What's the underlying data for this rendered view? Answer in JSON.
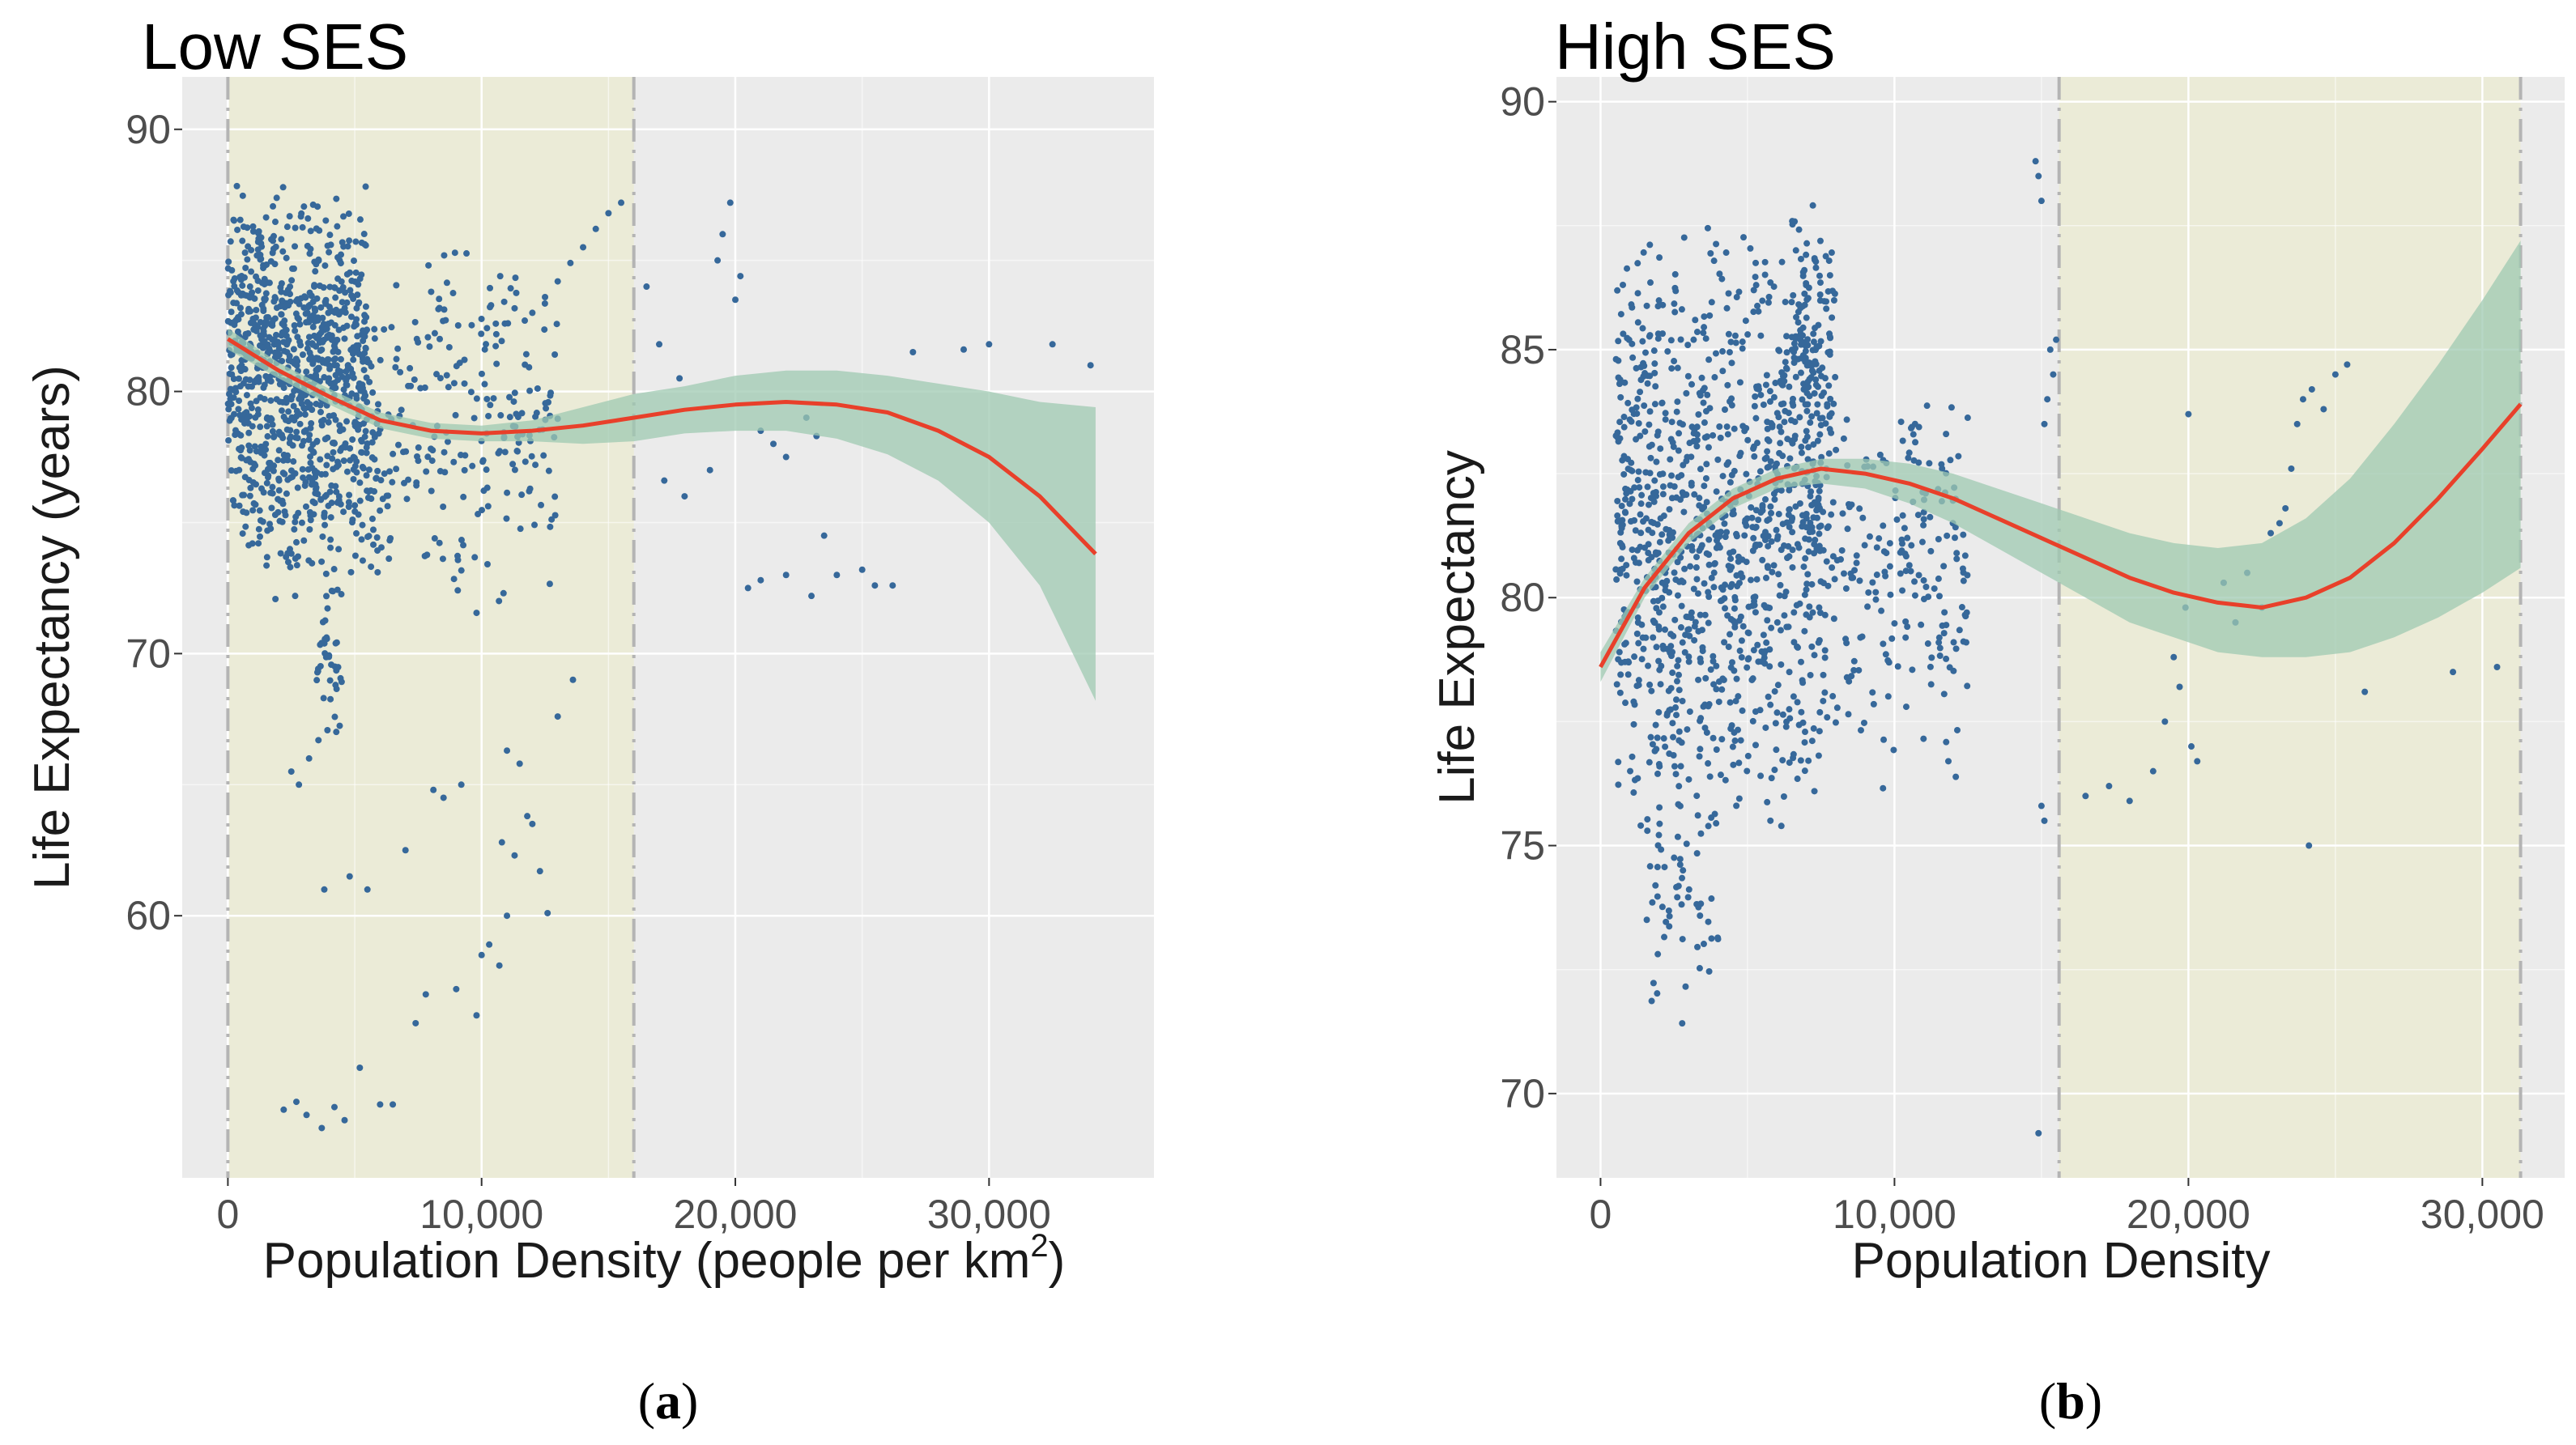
{
  "colors": {
    "panel_bg": "#EBEBEB",
    "grid": "#FFFFFF",
    "highlight": "#EBEBD7",
    "boundary_line": "#B4B4B4",
    "point": "#36689A",
    "ci_band": "#9FC9B2",
    "fit_line": "#E8402A"
  },
  "chart_data": [
    {
      "type": "scatter",
      "title": "Low SES",
      "xlabel": "Population Density (people per km",
      "xlabel_sup": "2",
      "xlabel_close": ")",
      "ylabel": "Life Expectancy (years)",
      "caption_open": "(",
      "caption_letter": "a",
      "caption_close": ")",
      "xlim": [
        -1800,
        36500
      ],
      "ylim": [
        50,
        92
      ],
      "xticks": [
        0,
        10000,
        20000,
        30000
      ],
      "xtick_labels": [
        "0",
        "10,000",
        "20,000",
        "30,000"
      ],
      "yticks": [
        60,
        70,
        80,
        90
      ],
      "ytick_labels": [
        "60",
        "70",
        "80",
        "90"
      ],
      "shaded_region": [
        0,
        16000
      ],
      "boundary_lines": [
        0,
        16000
      ],
      "fit": [
        {
          "x": 0,
          "y": 82.0,
          "lo": 81.6,
          "hi": 82.4
        },
        {
          "x": 2000,
          "y": 80.8,
          "lo": 80.5,
          "hi": 81.1
        },
        {
          "x": 4000,
          "y": 79.8,
          "lo": 79.5,
          "hi": 80.1
        },
        {
          "x": 6000,
          "y": 78.9,
          "lo": 78.6,
          "hi": 79.2
        },
        {
          "x": 8000,
          "y": 78.5,
          "lo": 78.2,
          "hi": 78.8
        },
        {
          "x": 10000,
          "y": 78.4,
          "lo": 78.1,
          "hi": 78.7
        },
        {
          "x": 12000,
          "y": 78.5,
          "lo": 78.1,
          "hi": 78.9
        },
        {
          "x": 14000,
          "y": 78.7,
          "lo": 78.0,
          "hi": 79.4
        },
        {
          "x": 16000,
          "y": 79.0,
          "lo": 78.1,
          "hi": 79.9
        },
        {
          "x": 18000,
          "y": 79.3,
          "lo": 78.4,
          "hi": 80.2
        },
        {
          "x": 20000,
          "y": 79.5,
          "lo": 78.5,
          "hi": 80.6
        },
        {
          "x": 22000,
          "y": 79.6,
          "lo": 78.5,
          "hi": 80.8
        },
        {
          "x": 24000,
          "y": 79.5,
          "lo": 78.2,
          "hi": 80.8
        },
        {
          "x": 26000,
          "y": 79.2,
          "lo": 77.6,
          "hi": 80.6
        },
        {
          "x": 28000,
          "y": 78.5,
          "lo": 76.6,
          "hi": 80.3
        },
        {
          "x": 30000,
          "y": 77.5,
          "lo": 75.0,
          "hi": 80.0
        },
        {
          "x": 32000,
          "y": 76.0,
          "lo": 72.6,
          "hi": 79.6
        },
        {
          "x": 34200,
          "y": 73.8,
          "lo": 68.2,
          "hi": 79.4
        }
      ],
      "clusters": [
        {
          "x": [
            0,
            5500
          ],
          "y": [
            75,
            88
          ],
          "n": 820
        },
        {
          "x": [
            500,
            6000
          ],
          "y": [
            72,
            80
          ],
          "n": 180
        },
        {
          "x": [
            5000,
            13000
          ],
          "y": [
            71,
            86
          ],
          "n": 260
        },
        {
          "x": [
            3500,
            4500
          ],
          "y": [
            66,
            74
          ],
          "n": 40
        }
      ],
      "points": [
        [
          14000,
          85.5
        ],
        [
          14500,
          86.2
        ],
        [
          15000,
          86.8
        ],
        [
          15500,
          87.2
        ],
        [
          13500,
          84.9
        ],
        [
          13000,
          84.2
        ],
        [
          12500,
          83.6
        ],
        [
          12000,
          83.0
        ],
        [
          16500,
          84.0
        ],
        [
          17000,
          81.8
        ],
        [
          17800,
          80.5
        ],
        [
          17200,
          76.6
        ],
        [
          18000,
          76.0
        ],
        [
          19000,
          77.0
        ],
        [
          19300,
          85.0
        ],
        [
          19500,
          86.0
        ],
        [
          19800,
          87.2
        ],
        [
          20200,
          84.4
        ],
        [
          20000,
          83.5
        ],
        [
          21000,
          78.5
        ],
        [
          21500,
          78.0
        ],
        [
          22000,
          77.5
        ],
        [
          22800,
          79.0
        ],
        [
          23200,
          78.3
        ],
        [
          20500,
          72.5
        ],
        [
          21000,
          72.8
        ],
        [
          22000,
          73.0
        ],
        [
          23000,
          72.2
        ],
        [
          23500,
          74.5
        ],
        [
          24000,
          73.0
        ],
        [
          25000,
          73.2
        ],
        [
          25500,
          72.6
        ],
        [
          26200,
          72.6
        ],
        [
          27000,
          81.5
        ],
        [
          29000,
          81.6
        ],
        [
          30000,
          81.8
        ],
        [
          32500,
          81.8
        ],
        [
          34000,
          81.0
        ],
        [
          2500,
          65.5
        ],
        [
          2800,
          65.0
        ],
        [
          3200,
          66.0
        ],
        [
          3800,
          61.0
        ],
        [
          4800,
          61.5
        ],
        [
          7000,
          62.5
        ],
        [
          5500,
          61.0
        ],
        [
          6500,
          52.8
        ],
        [
          2200,
          52.6
        ],
        [
          2700,
          52.9
        ],
        [
          3100,
          52.4
        ],
        [
          3700,
          51.9
        ],
        [
          4200,
          52.7
        ],
        [
          4600,
          52.2
        ],
        [
          5200,
          54.2
        ],
        [
          6000,
          52.8
        ],
        [
          7400,
          55.9
        ],
        [
          7800,
          57.0
        ],
        [
          8500,
          64.5
        ],
        [
          9000,
          57.2
        ],
        [
          9200,
          65.0
        ],
        [
          9800,
          56.2
        ],
        [
          10000,
          58.5
        ],
        [
          10300,
          58.9
        ],
        [
          10700,
          58.1
        ],
        [
          11000,
          60.0
        ],
        [
          11300,
          62.3
        ],
        [
          11800,
          63.8
        ],
        [
          12300,
          61.7
        ],
        [
          12600,
          60.1
        ],
        [
          13000,
          67.6
        ],
        [
          13600,
          69.0
        ],
        [
          8100,
          64.8
        ],
        [
          11500,
          65.8
        ],
        [
          11000,
          66.3
        ],
        [
          10800,
          62.8
        ],
        [
          12000,
          63.5
        ]
      ]
    },
    {
      "type": "scatter",
      "title": "High SES",
      "xlabel": "Population Density",
      "ylabel": "Life Expectancy",
      "caption_open": "(",
      "caption_letter": "b",
      "caption_close": ")",
      "xlim": [
        -1500,
        32800
      ],
      "ylim": [
        68.3,
        90.5
      ],
      "xticks": [
        0,
        10000,
        20000,
        30000
      ],
      "xtick_labels": [
        "0",
        "10,000",
        "20,000",
        "30,000"
      ],
      "yticks": [
        70,
        75,
        80,
        85,
        90
      ],
      "ytick_labels": [
        "70",
        "75",
        "80",
        "85",
        "90"
      ],
      "shaded_region": [
        15600,
        31300
      ],
      "boundary_lines": [
        15600,
        31300
      ],
      "fit": [
        {
          "x": 0,
          "y": 78.6,
          "lo": 78.3,
          "hi": 78.9
        },
        {
          "x": 1500,
          "y": 80.2,
          "lo": 80.0,
          "hi": 80.4
        },
        {
          "x": 3000,
          "y": 81.3,
          "lo": 81.1,
          "hi": 81.5
        },
        {
          "x": 4500,
          "y": 82.0,
          "lo": 81.8,
          "hi": 82.2
        },
        {
          "x": 6000,
          "y": 82.4,
          "lo": 82.2,
          "hi": 82.6
        },
        {
          "x": 7500,
          "y": 82.6,
          "lo": 82.3,
          "hi": 82.8
        },
        {
          "x": 9000,
          "y": 82.5,
          "lo": 82.2,
          "hi": 82.8
        },
        {
          "x": 10500,
          "y": 82.3,
          "lo": 81.9,
          "hi": 82.7
        },
        {
          "x": 12000,
          "y": 82.0,
          "lo": 81.5,
          "hi": 82.5
        },
        {
          "x": 13500,
          "y": 81.6,
          "lo": 81.0,
          "hi": 82.2
        },
        {
          "x": 15000,
          "y": 81.2,
          "lo": 80.5,
          "hi": 81.9
        },
        {
          "x": 16500,
          "y": 80.8,
          "lo": 80.0,
          "hi": 81.6
        },
        {
          "x": 18000,
          "y": 80.4,
          "lo": 79.5,
          "hi": 81.3
        },
        {
          "x": 19500,
          "y": 80.1,
          "lo": 79.2,
          "hi": 81.1
        },
        {
          "x": 21000,
          "y": 79.9,
          "lo": 78.9,
          "hi": 81.0
        },
        {
          "x": 22500,
          "y": 79.8,
          "lo": 78.8,
          "hi": 81.1
        },
        {
          "x": 24000,
          "y": 80.0,
          "lo": 78.8,
          "hi": 81.6
        },
        {
          "x": 25500,
          "y": 80.4,
          "lo": 78.9,
          "hi": 82.4
        },
        {
          "x": 27000,
          "y": 81.1,
          "lo": 79.2,
          "hi": 83.5
        },
        {
          "x": 28500,
          "y": 82.0,
          "lo": 79.6,
          "hi": 84.7
        },
        {
          "x": 30000,
          "y": 83.0,
          "lo": 80.1,
          "hi": 86.0
        },
        {
          "x": 31300,
          "y": 83.9,
          "lo": 80.6,
          "hi": 87.2
        }
      ],
      "clusters": [
        {
          "x": [
            500,
            7500
          ],
          "y": [
            75,
            88
          ],
          "n": 1050
        },
        {
          "x": [
            1500,
            4000
          ],
          "y": [
            71,
            77
          ],
          "n": 60
        },
        {
          "x": [
            6500,
            8000
          ],
          "y": [
            82,
            88
          ],
          "n": 120
        },
        {
          "x": [
            7500,
            12500
          ],
          "y": [
            76,
            85
          ],
          "n": 220
        }
      ],
      "points": [
        [
          14800,
          88.8
        ],
        [
          14900,
          88.5
        ],
        [
          15000,
          88.0
        ],
        [
          15300,
          85.0
        ],
        [
          15400,
          84.5
        ],
        [
          15200,
          84.0
        ],
        [
          15100,
          83.5
        ],
        [
          15500,
          85.2
        ],
        [
          15000,
          75.8
        ],
        [
          15100,
          75.5
        ],
        [
          14900,
          69.2
        ],
        [
          16500,
          76.0
        ],
        [
          17300,
          76.2
        ],
        [
          18000,
          75.9
        ],
        [
          18800,
          76.5
        ],
        [
          19200,
          77.5
        ],
        [
          19500,
          78.8
        ],
        [
          19700,
          78.2
        ],
        [
          19900,
          79.8
        ],
        [
          20100,
          77.0
        ],
        [
          20300,
          76.7
        ],
        [
          20000,
          83.7
        ],
        [
          21200,
          80.3
        ],
        [
          22500,
          79.8
        ],
        [
          22800,
          81.3
        ],
        [
          23100,
          81.5
        ],
        [
          23300,
          81.8
        ],
        [
          23500,
          82.6
        ],
        [
          23700,
          83.5
        ],
        [
          23900,
          84.0
        ],
        [
          24200,
          84.2
        ],
        [
          24600,
          83.8
        ],
        [
          25000,
          84.5
        ],
        [
          25400,
          84.7
        ],
        [
          24100,
          75.0
        ],
        [
          26000,
          78.1
        ],
        [
          29000,
          78.5
        ],
        [
          30500,
          78.6
        ],
        [
          21600,
          79.5
        ],
        [
          22000,
          80.5
        ]
      ]
    }
  ]
}
